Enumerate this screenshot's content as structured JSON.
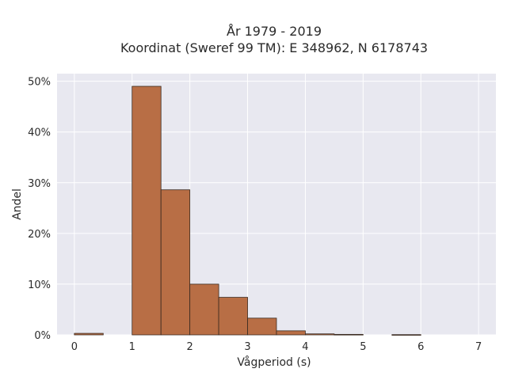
{
  "chart_data": {
    "type": "bar",
    "title_line1": "År 1979 - 2019",
    "title_line2": "Koordinat (Sweref 99 TM): E 348962, N 6178743",
    "xlabel": "Vågperiod (s)",
    "ylabel": "Andel",
    "bin_width": 0.5,
    "bins": [
      {
        "start": 0.0,
        "value": 0.3
      },
      {
        "start": 0.5,
        "value": 0.0
      },
      {
        "start": 1.0,
        "value": 49.0
      },
      {
        "start": 1.5,
        "value": 28.6
      },
      {
        "start": 2.0,
        "value": 10.0
      },
      {
        "start": 2.5,
        "value": 7.4
      },
      {
        "start": 3.0,
        "value": 3.3
      },
      {
        "start": 3.5,
        "value": 0.8
      },
      {
        "start": 4.0,
        "value": 0.2
      },
      {
        "start": 4.5,
        "value": 0.1
      },
      {
        "start": 5.0,
        "value": 0.0
      },
      {
        "start": 5.5,
        "value": 0.05
      },
      {
        "start": 6.0,
        "value": 0.0
      },
      {
        "start": 6.5,
        "value": 0.0
      }
    ],
    "xlim": [
      -0.3,
      7.3
    ],
    "ylim": [
      0,
      51.5
    ],
    "xticks": [
      0,
      1,
      2,
      3,
      4,
      5,
      6,
      7
    ],
    "xtick_labels": [
      "0",
      "1",
      "2",
      "3",
      "4",
      "5",
      "6",
      "7"
    ],
    "yticks": [
      0,
      10,
      20,
      30,
      40,
      50
    ],
    "ytick_labels": [
      "0%",
      "10%",
      "20%",
      "30%",
      "40%",
      "50%"
    ],
    "grid": true,
    "colors": {
      "bar_fill": "#b86e45",
      "bar_stroke": "#3a2a20",
      "plot_bg": "#e8e8f0",
      "grid": "#ffffff"
    }
  }
}
